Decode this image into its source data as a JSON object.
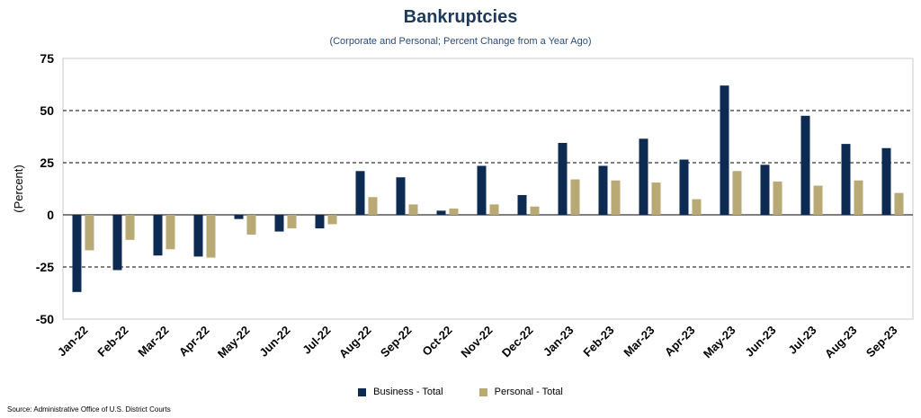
{
  "header": {
    "title": "Bankruptcies",
    "subtitle": "(Corporate and Personal; Percent Change from a Year Ago)"
  },
  "footer": {
    "source": "Source: Administrative Office of U.S. District Courts"
  },
  "colors": {
    "business": "#0d2b52",
    "personal": "#b9a974",
    "title": "#1b3a5c"
  },
  "chart_data": {
    "type": "bar",
    "title": "Bankruptcies",
    "subtitle": "(Corporate and Personal; Percent Change from a Year Ago)",
    "xlabel": "",
    "ylabel": "(Percent)",
    "ylim": [
      -50,
      75
    ],
    "yticks": [
      "-50",
      "-25",
      "0",
      "25",
      "50",
      "75"
    ],
    "ytick_values": [
      -50,
      -25,
      0,
      25,
      50,
      75
    ],
    "grid": "horizontal dashed",
    "legend_position": "bottom",
    "categories": [
      "Jan-22",
      "Feb-22",
      "Mar-22",
      "Apr-22",
      "May-22",
      "Jun-22",
      "Jul-22",
      "Aug-22",
      "Sep-22",
      "Oct-22",
      "Nov-22",
      "Dec-22",
      "Jan-23",
      "Feb-23",
      "Mar-23",
      "Apr-23",
      "May-23",
      "Jun-23",
      "Jul-23",
      "Aug-23",
      "Sep-23"
    ],
    "series": [
      {
        "name": "Business - Total",
        "color": "#0d2b52",
        "values": [
          -37,
          -26.5,
          -19.5,
          -20,
          -2,
          -8,
          -6.5,
          21,
          18,
          2,
          23.5,
          9.5,
          34.5,
          23.5,
          36.5,
          26.5,
          62,
          24,
          47.5,
          34,
          32
        ]
      },
      {
        "name": "Personal - Total",
        "color": "#b9a974",
        "values": [
          -17,
          -12,
          -16.5,
          -20.5,
          -9.5,
          -6.5,
          -4.5,
          8.5,
          5,
          3,
          5,
          4,
          17,
          16.5,
          15.5,
          7.5,
          21,
          16,
          14,
          16.5,
          10.5
        ]
      }
    ]
  }
}
